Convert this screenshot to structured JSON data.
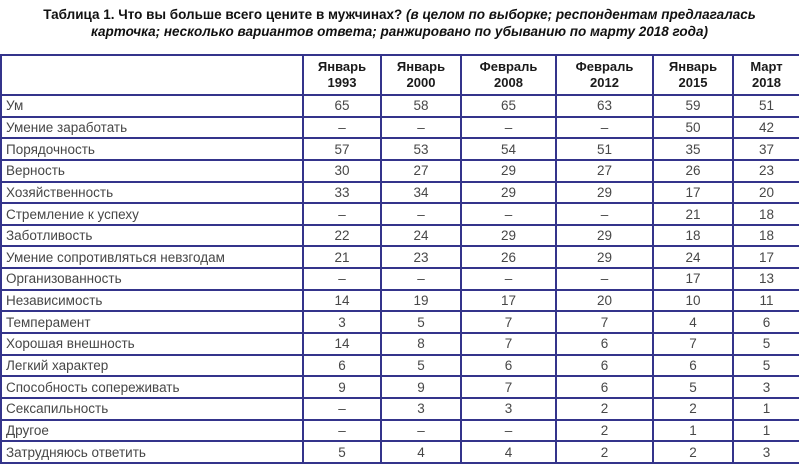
{
  "title": {
    "main": "Таблица 1. Что вы больше всего цените в мужчинах?",
    "note": "(в целом по выборке; респондентам предлагалась карточка; несколько вариантов ответа; ранжировано по убыванию по марту 2018 года)"
  },
  "colors": {
    "border": "#34348B",
    "body_text": "#474747",
    "header_text": "#1a1a1a",
    "background": "#ffffff"
  },
  "table": {
    "corner_label": "",
    "columns": [
      {
        "month": "Январь",
        "year": "1993"
      },
      {
        "month": "Январь",
        "year": "2000"
      },
      {
        "month": "Февраль",
        "year": "2008"
      },
      {
        "month": "Февраль",
        "year": "2012"
      },
      {
        "month": "Январь",
        "year": "2015"
      },
      {
        "month": "Март",
        "year": "2018"
      }
    ],
    "rows": [
      {
        "label": "Ум",
        "values": [
          "65",
          "58",
          "65",
          "63",
          "59",
          "51"
        ]
      },
      {
        "label": "Умение заработать",
        "values": [
          "–",
          "–",
          "–",
          "–",
          "50",
          "42"
        ]
      },
      {
        "label": "Порядочность",
        "values": [
          "57",
          "53",
          "54",
          "51",
          "35",
          "37"
        ]
      },
      {
        "label": "Верность",
        "values": [
          "30",
          "27",
          "29",
          "27",
          "26",
          "23"
        ]
      },
      {
        "label": "Хозяйственность",
        "values": [
          "33",
          "34",
          "29",
          "29",
          "17",
          "20"
        ]
      },
      {
        "label": "Стремление к успеху",
        "values": [
          "–",
          "–",
          "–",
          "–",
          "21",
          "18"
        ]
      },
      {
        "label": "Заботливость",
        "values": [
          "22",
          "24",
          "29",
          "29",
          "18",
          "18"
        ]
      },
      {
        "label": "Умение сопротивляться невзгодам",
        "values": [
          "21",
          "23",
          "26",
          "29",
          "24",
          "17"
        ]
      },
      {
        "label": "Организованность",
        "values": [
          "–",
          "–",
          "–",
          "–",
          "17",
          "13"
        ]
      },
      {
        "label": "Независимость",
        "values": [
          "14",
          "19",
          "17",
          "20",
          "10",
          "11"
        ]
      },
      {
        "label": "Темперамент",
        "values": [
          "3",
          "5",
          "7",
          "7",
          "4",
          "6"
        ]
      },
      {
        "label": "Хорошая внешность",
        "values": [
          "14",
          "8",
          "7",
          "6",
          "7",
          "5"
        ]
      },
      {
        "label": "Легкий характер",
        "values": [
          "6",
          "5",
          "6",
          "6",
          "6",
          "5"
        ]
      },
      {
        "label": "Способность сопереживать",
        "values": [
          "9",
          "9",
          "7",
          "6",
          "5",
          "3"
        ]
      },
      {
        "label": "Сексапильность",
        "values": [
          "–",
          "3",
          "3",
          "2",
          "2",
          "1"
        ]
      },
      {
        "label": "Другое",
        "values": [
          "–",
          "–",
          "–",
          "2",
          "1",
          "1"
        ]
      },
      {
        "label": "Затрудняюсь ответить",
        "values": [
          "5",
          "4",
          "4",
          "2",
          "2",
          "3"
        ]
      }
    ]
  }
}
